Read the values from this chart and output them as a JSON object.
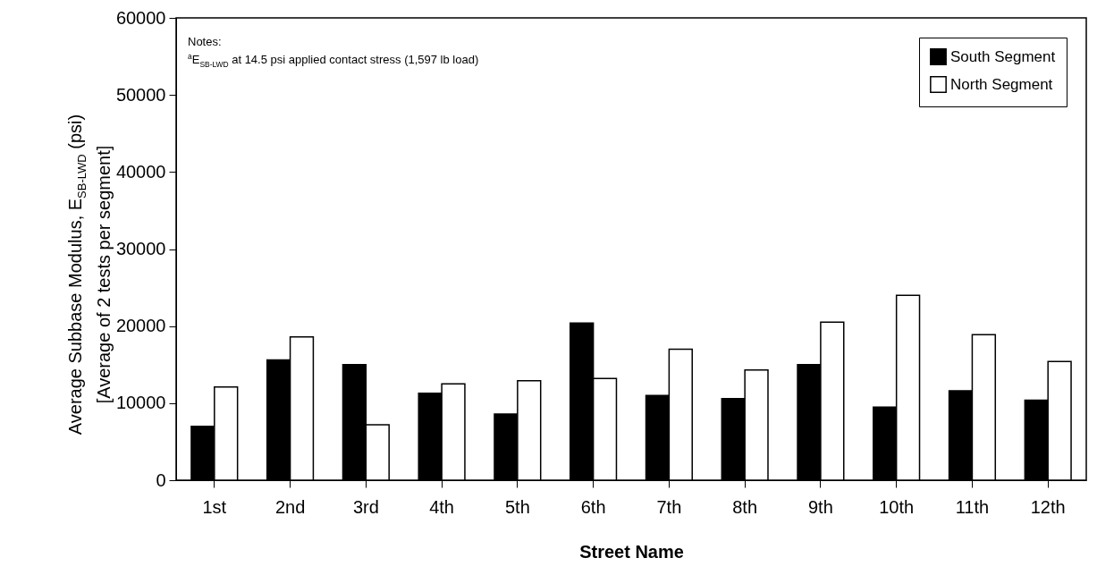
{
  "chart_data": {
    "type": "bar",
    "xlabel": "Street Name",
    "ylabel": "Average Subbase Modulus, E$_{SB-LWD}$ (psi)\n[Average of 2 tests per segment]",
    "annotations": [
      "Notes:",
      "$^{a}$E$_{SB-LWD}$ at 14.5 psi applied contact stress (1,597 lb load)"
    ],
    "categories": [
      "1st",
      "2nd",
      "3rd",
      "4th",
      "5th",
      "6th",
      "7th",
      "8th",
      "9th",
      "10th",
      "11th",
      "12th"
    ],
    "series": [
      {
        "name": "South Segment",
        "color": "#000000",
        "values": [
          7000,
          15600,
          15000,
          11300,
          8600,
          20400,
          11000,
          10600,
          15000,
          9500,
          11600,
          10400
        ]
      },
      {
        "name": "North Segment",
        "color": "#ffffff",
        "values": [
          12100,
          18600,
          7200,
          12500,
          12900,
          13200,
          17000,
          14300,
          20500,
          24000,
          18900,
          15400
        ]
      }
    ],
    "ylim": [
      0,
      60000
    ],
    "yticks": [
      0,
      10000,
      20000,
      30000,
      40000,
      50000,
      60000
    ],
    "legend": "top right"
  }
}
